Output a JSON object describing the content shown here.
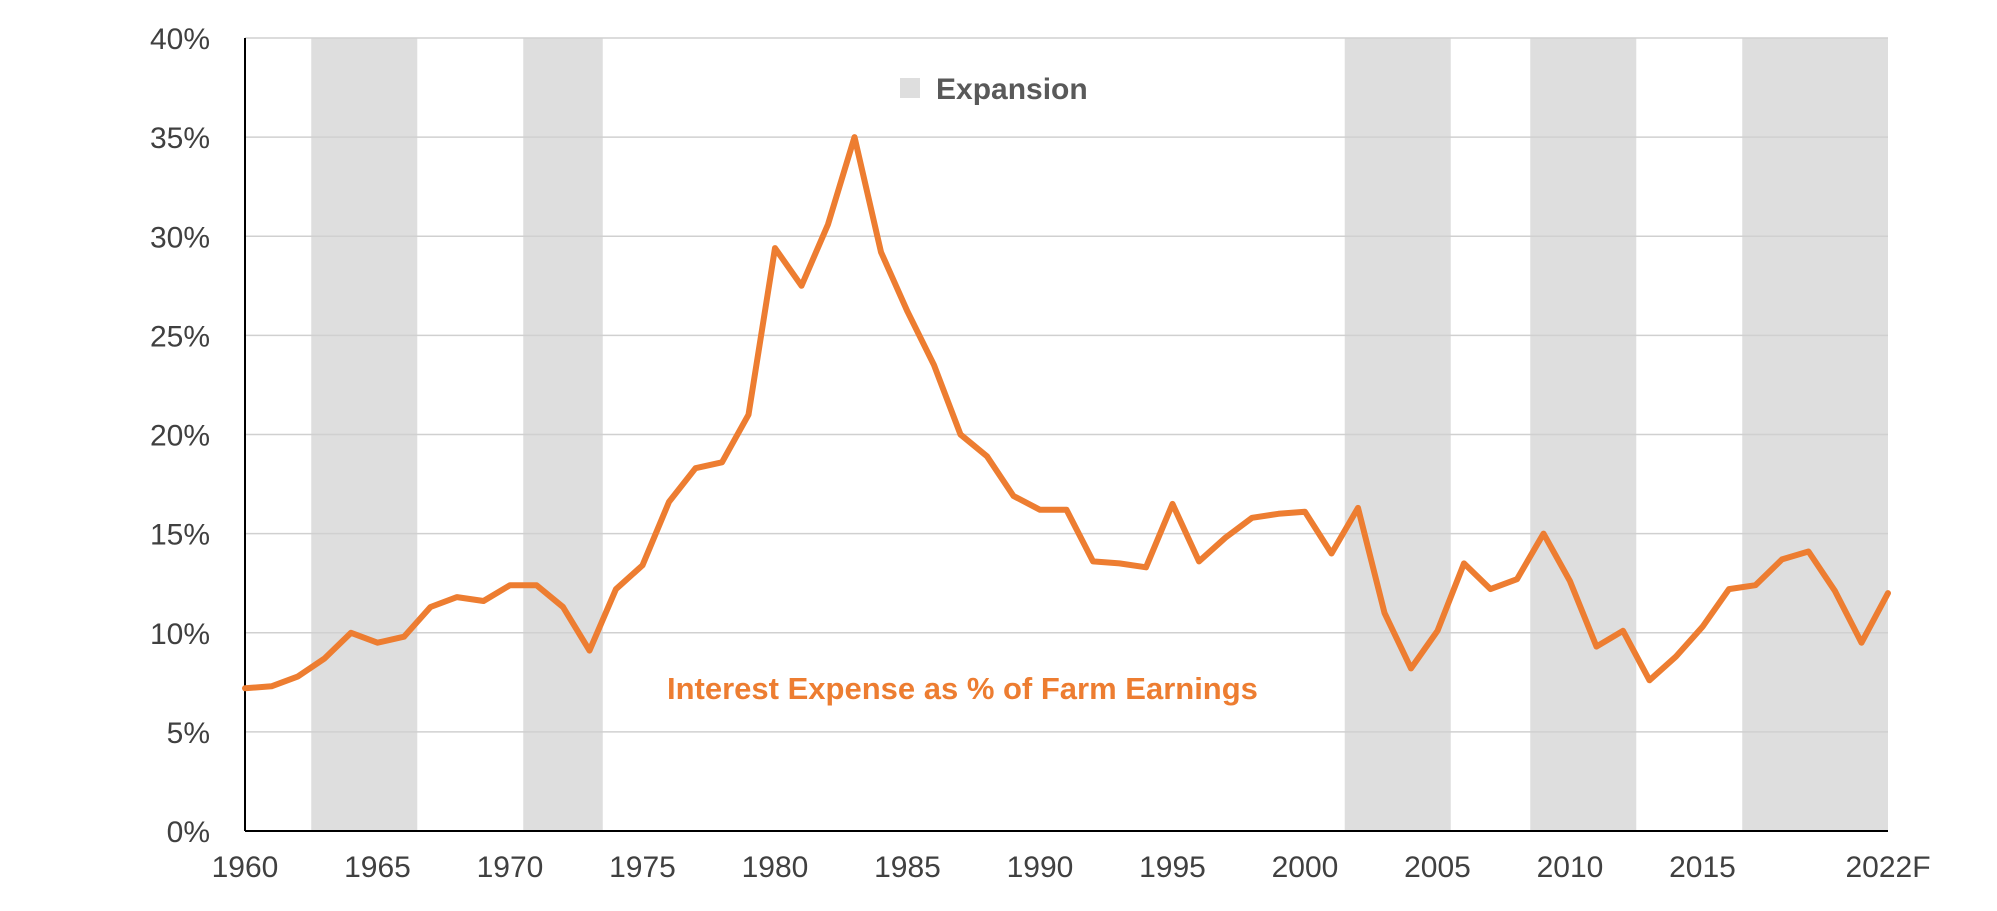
{
  "chart_data": {
    "type": "line",
    "title": "",
    "xlabel": "",
    "ylabel": "",
    "x_range": [
      1960,
      2022
    ],
    "ylim": [
      0,
      40
    ],
    "grid": true,
    "y_ticks": [
      0,
      5,
      10,
      15,
      20,
      25,
      30,
      35,
      40
    ],
    "y_tick_labels": [
      "0%",
      "5%",
      "10%",
      "15%",
      "20%",
      "25%",
      "30%",
      "35%",
      "40%"
    ],
    "x_ticks": [
      1960,
      1965,
      1970,
      1975,
      1980,
      1985,
      1990,
      1995,
      2000,
      2005,
      2010,
      2015,
      2022
    ],
    "x_tick_labels": [
      "1960",
      "1965",
      "1970",
      "1975",
      "1980",
      "1985",
      "1990",
      "1995",
      "2000",
      "2005",
      "2010",
      "2015",
      "2022F"
    ],
    "legend": {
      "label": "Expansion",
      "placement": "top-center"
    },
    "shaded_regions": {
      "name": "Expansion",
      "color": "#dedede",
      "ranges": [
        [
          1962.5,
          1966.5
        ],
        [
          1970.5,
          1973.5
        ],
        [
          2001.5,
          2005.5
        ],
        [
          2008.5,
          2012.5
        ],
        [
          2016.5,
          2022.5
        ]
      ]
    },
    "series": [
      {
        "name": "Interest Expense as % of Farm Earnings",
        "color": "#ed7d31",
        "x": [
          1960,
          1961,
          1962,
          1963,
          1964,
          1965,
          1966,
          1967,
          1968,
          1969,
          1970,
          1971,
          1972,
          1973,
          1974,
          1975,
          1976,
          1977,
          1978,
          1979,
          1980,
          1981,
          1982,
          1983,
          1984,
          1985,
          1986,
          1987,
          1988,
          1989,
          1990,
          1991,
          1992,
          1993,
          1994,
          1995,
          1996,
          1997,
          1998,
          1999,
          2000,
          2001,
          2002,
          2003,
          2004,
          2005,
          2006,
          2007,
          2008,
          2009,
          2010,
          2011,
          2012,
          2013,
          2014,
          2015,
          2016,
          2017,
          2018,
          2019,
          2020,
          2021,
          2022
        ],
        "values": [
          7.2,
          7.3,
          7.8,
          8.7,
          10.0,
          9.5,
          9.8,
          11.3,
          11.8,
          11.6,
          12.4,
          12.4,
          11.3,
          9.1,
          12.2,
          13.4,
          16.6,
          18.3,
          18.6,
          21.0,
          29.4,
          27.5,
          30.6,
          35.0,
          29.2,
          26.2,
          23.5,
          20.0,
          18.9,
          16.9,
          16.2,
          16.2,
          13.6,
          13.5,
          13.3,
          16.5,
          13.6,
          14.8,
          15.8,
          16.0,
          16.1,
          14.0,
          16.3,
          11.0,
          8.2,
          10.1,
          13.5,
          12.2,
          12.7,
          15.0,
          12.6,
          9.3,
          10.1,
          7.6,
          8.8,
          10.3,
          12.2,
          12.4,
          13.7,
          14.1,
          12.1,
          9.5,
          12.0
        ]
      }
    ]
  }
}
